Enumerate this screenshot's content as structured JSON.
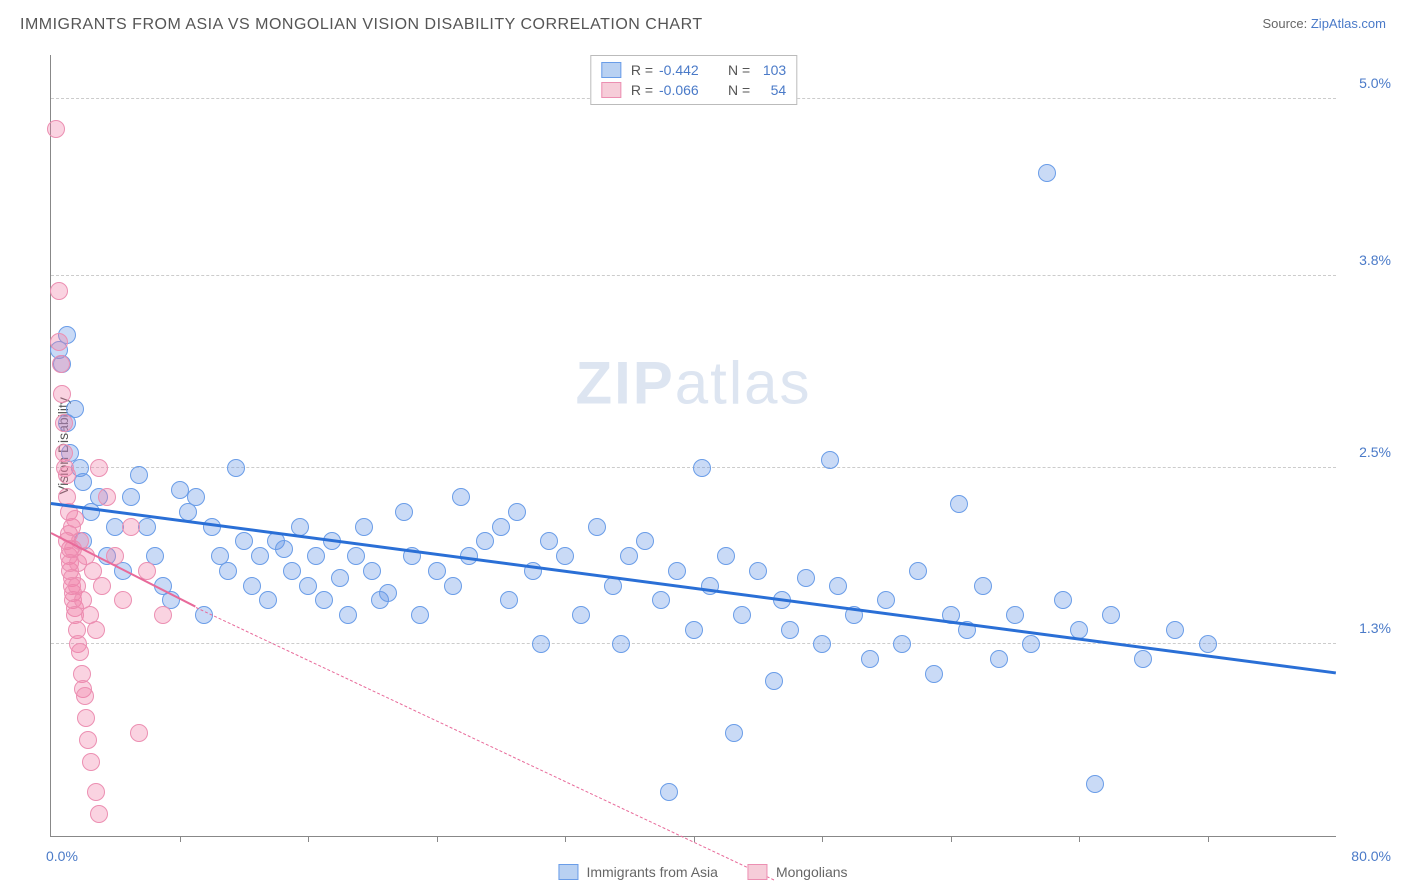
{
  "title": "IMMIGRANTS FROM ASIA VS MONGOLIAN VISION DISABILITY CORRELATION CHART",
  "source_label": "Source: ",
  "source_name": "ZipAtlas.com",
  "watermark_a": "ZIP",
  "watermark_b": "atlas",
  "ylabel": "Vision Disability",
  "chart": {
    "type": "scatter",
    "xlim": [
      0,
      80
    ],
    "ylim": [
      0,
      5.3
    ],
    "background_color": "#ffffff",
    "grid_color": "#cccccc",
    "axis_color": "#888888",
    "yticks": [
      {
        "value": 1.3,
        "label": "1.3%"
      },
      {
        "value": 2.5,
        "label": "2.5%"
      },
      {
        "value": 3.8,
        "label": "3.8%"
      },
      {
        "value": 5.0,
        "label": "5.0%"
      }
    ],
    "xticks_minor": [
      8,
      16,
      24,
      32,
      40,
      48,
      56,
      64,
      72
    ],
    "x_left_label": "0.0%",
    "x_right_label": "80.0%",
    "series": [
      {
        "name": "Immigrants from Asia",
        "color_fill": "rgba(100,150,230,0.35)",
        "color_stroke": "#6a9de8",
        "marker_radius": 9,
        "trend_color": "#2a6fd6",
        "trend_width": 2.5,
        "trend_solid": true,
        "trend": {
          "x1": 0,
          "y1": 2.25,
          "x2": 80,
          "y2": 1.1
        },
        "R": "-0.442",
        "N": "103",
        "swatch_fill": "#b9d1f2",
        "swatch_border": "#6a9de8",
        "points": [
          [
            0.5,
            3.3
          ],
          [
            0.7,
            3.2
          ],
          [
            1,
            3.4
          ],
          [
            1,
            2.8
          ],
          [
            1.2,
            2.6
          ],
          [
            1.5,
            2.9
          ],
          [
            1.8,
            2.5
          ],
          [
            2,
            2.4
          ],
          [
            2,
            2.0
          ],
          [
            2.5,
            2.2
          ],
          [
            3,
            2.3
          ],
          [
            3.5,
            1.9
          ],
          [
            4,
            2.1
          ],
          [
            4.5,
            1.8
          ],
          [
            5,
            2.3
          ],
          [
            5.5,
            2.45
          ],
          [
            6,
            2.1
          ],
          [
            6.5,
            1.9
          ],
          [
            7,
            1.7
          ],
          [
            7.5,
            1.6
          ],
          [
            8,
            2.35
          ],
          [
            8.5,
            2.2
          ],
          [
            9,
            2.3
          ],
          [
            9.5,
            1.5
          ],
          [
            10,
            2.1
          ],
          [
            10.5,
            1.9
          ],
          [
            11,
            1.8
          ],
          [
            11.5,
            2.5
          ],
          [
            12,
            2.0
          ],
          [
            12.5,
            1.7
          ],
          [
            13,
            1.9
          ],
          [
            13.5,
            1.6
          ],
          [
            14,
            2.0
          ],
          [
            14.5,
            1.95
          ],
          [
            15,
            1.8
          ],
          [
            15.5,
            2.1
          ],
          [
            16,
            1.7
          ],
          [
            16.5,
            1.9
          ],
          [
            17,
            1.6
          ],
          [
            17.5,
            2.0
          ],
          [
            18,
            1.75
          ],
          [
            18.5,
            1.5
          ],
          [
            19,
            1.9
          ],
          [
            19.5,
            2.1
          ],
          [
            20,
            1.8
          ],
          [
            20.5,
            1.6
          ],
          [
            21,
            1.65
          ],
          [
            22,
            2.2
          ],
          [
            22.5,
            1.9
          ],
          [
            23,
            1.5
          ],
          [
            24,
            1.8
          ],
          [
            25,
            1.7
          ],
          [
            25.5,
            2.3
          ],
          [
            26,
            1.9
          ],
          [
            27,
            2.0
          ],
          [
            28,
            2.1
          ],
          [
            28.5,
            1.6
          ],
          [
            29,
            2.2
          ],
          [
            30,
            1.8
          ],
          [
            30.5,
            1.3
          ],
          [
            31,
            2.0
          ],
          [
            32,
            1.9
          ],
          [
            33,
            1.5
          ],
          [
            34,
            2.1
          ],
          [
            35,
            1.7
          ],
          [
            35.5,
            1.3
          ],
          [
            36,
            1.9
          ],
          [
            37,
            2.0
          ],
          [
            38,
            1.6
          ],
          [
            38.5,
            0.3
          ],
          [
            39,
            1.8
          ],
          [
            40,
            1.4
          ],
          [
            40.5,
            2.5
          ],
          [
            41,
            1.7
          ],
          [
            42,
            1.9
          ],
          [
            42.5,
            0.7
          ],
          [
            43,
            1.5
          ],
          [
            44,
            1.8
          ],
          [
            45,
            1.05
          ],
          [
            45.5,
            1.6
          ],
          [
            46,
            1.4
          ],
          [
            47,
            1.75
          ],
          [
            48,
            1.3
          ],
          [
            48.5,
            2.55
          ],
          [
            49,
            1.7
          ],
          [
            50,
            1.5
          ],
          [
            51,
            1.2
          ],
          [
            52,
            1.6
          ],
          [
            53,
            1.3
          ],
          [
            54,
            1.8
          ],
          [
            55,
            1.1
          ],
          [
            56,
            1.5
          ],
          [
            56.5,
            2.25
          ],
          [
            57,
            1.4
          ],
          [
            58,
            1.7
          ],
          [
            59,
            1.2
          ],
          [
            60,
            1.5
          ],
          [
            61,
            1.3
          ],
          [
            62,
            4.5
          ],
          [
            63,
            1.6
          ],
          [
            64,
            1.4
          ],
          [
            65,
            0.35
          ],
          [
            66,
            1.5
          ],
          [
            68,
            1.2
          ],
          [
            70,
            1.4
          ],
          [
            72,
            1.3
          ]
        ]
      },
      {
        "name": "Mongolians",
        "color_fill": "rgba(240,130,170,0.35)",
        "color_stroke": "#ec8fb2",
        "marker_radius": 9,
        "trend_color": "#e86a9a",
        "trend_width": 2,
        "trend_solid_then_dashed": true,
        "trend_solid_part": {
          "x1": 0,
          "y1": 2.05,
          "x2": 9,
          "y2": 1.55
        },
        "trend_dashed_part": {
          "x1": 9,
          "y1": 1.55,
          "x2": 45,
          "y2": -0.3
        },
        "R": "-0.066",
        "N": "54",
        "swatch_fill": "#f6cdd9",
        "swatch_border": "#ec8fb2",
        "points": [
          [
            0.3,
            4.8
          ],
          [
            0.5,
            3.7
          ],
          [
            0.5,
            3.35
          ],
          [
            0.6,
            3.2
          ],
          [
            0.7,
            3.0
          ],
          [
            0.8,
            2.8
          ],
          [
            0.8,
            2.6
          ],
          [
            0.9,
            2.5
          ],
          [
            1.0,
            2.45
          ],
          [
            1.0,
            2.3
          ],
          [
            1.1,
            2.2
          ],
          [
            1.1,
            2.05
          ],
          [
            1.2,
            1.95
          ],
          [
            1.2,
            1.8
          ],
          [
            1.3,
            1.75
          ],
          [
            1.3,
            1.7
          ],
          [
            1.4,
            1.65
          ],
          [
            1.4,
            1.6
          ],
          [
            1.5,
            1.55
          ],
          [
            1.5,
            1.5
          ],
          [
            1.6,
            1.4
          ],
          [
            1.7,
            1.3
          ],
          [
            1.8,
            1.25
          ],
          [
            1.9,
            1.1
          ],
          [
            2.0,
            1.0
          ],
          [
            2.1,
            0.95
          ],
          [
            2.2,
            0.8
          ],
          [
            2.3,
            0.65
          ],
          [
            2.5,
            0.5
          ],
          [
            2.8,
            0.3
          ],
          [
            3.0,
            0.15
          ],
          [
            1.0,
            2.0
          ],
          [
            1.1,
            1.9
          ],
          [
            1.2,
            1.85
          ],
          [
            1.3,
            2.1
          ],
          [
            1.4,
            1.95
          ],
          [
            1.5,
            2.15
          ],
          [
            1.6,
            1.7
          ],
          [
            1.7,
            1.85
          ],
          [
            1.8,
            2.0
          ],
          [
            2.0,
            1.6
          ],
          [
            2.2,
            1.9
          ],
          [
            2.4,
            1.5
          ],
          [
            2.6,
            1.8
          ],
          [
            2.8,
            1.4
          ],
          [
            3.0,
            2.5
          ],
          [
            3.2,
            1.7
          ],
          [
            3.5,
            2.3
          ],
          [
            4.0,
            1.9
          ],
          [
            4.5,
            1.6
          ],
          [
            5.0,
            2.1
          ],
          [
            5.5,
            0.7
          ],
          [
            6.0,
            1.8
          ],
          [
            7.0,
            1.5
          ]
        ]
      }
    ]
  },
  "stats_legend": {
    "r_label": "R =",
    "n_label": "N ="
  },
  "bottom_legend": [
    {
      "label": "Immigrants from Asia",
      "fill": "#b9d1f2",
      "border": "#6a9de8"
    },
    {
      "label": "Mongolians",
      "fill": "#f6cdd9",
      "border": "#ec8fb2"
    }
  ]
}
